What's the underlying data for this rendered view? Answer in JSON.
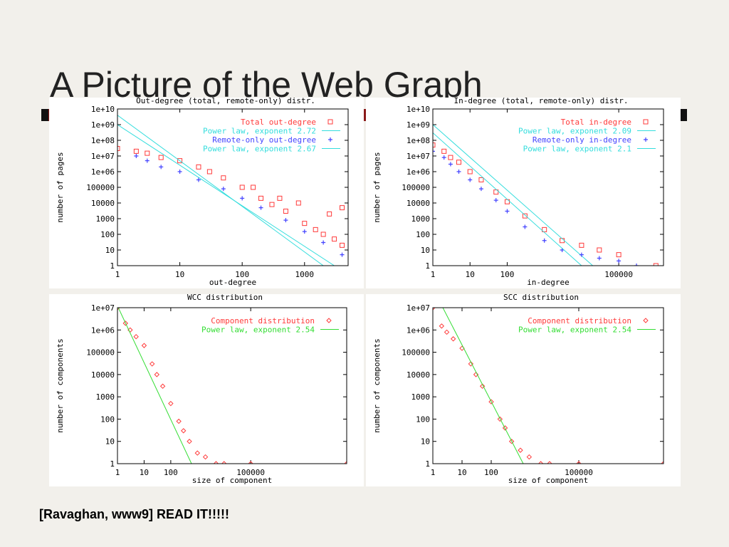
{
  "title": "A Picture of the Web Graph",
  "footnote": "[Ravaghan, www9] READ IT!!!!!",
  "chart_data": [
    {
      "type": "scatter",
      "title": "Out-degree (total, remote-only) distr.",
      "x_label": "out-degree",
      "y_label": "number of pages",
      "log_x": true,
      "log_y": true,
      "grid": false,
      "legend": "top-right",
      "xlim": [
        1,
        5000
      ],
      "ylim": [
        1,
        10000000000
      ],
      "xticks": [
        1,
        10,
        100,
        1000
      ],
      "yticks": [
        1,
        10,
        100,
        1000,
        10000,
        100000,
        {
          "value": 1000000,
          "label": "1e+06"
        },
        {
          "value": 10000000,
          "label": "1e+07"
        },
        {
          "value": 100000000,
          "label": "1e+08"
        },
        {
          "value": 1000000000,
          "label": "1e+09"
        },
        {
          "value": 10000000000,
          "label": "1e+10"
        }
      ],
      "series": [
        {
          "name": "Total out-degree",
          "color": "#ff3b3b",
          "marker": "square",
          "x": [
            1,
            2,
            3,
            5,
            10,
            20,
            30,
            50,
            100,
            150,
            200,
            300,
            400,
            500,
            800,
            1000,
            1500,
            2000,
            2500,
            3000,
            4000,
            4000
          ],
          "values": [
            30000000,
            20000000,
            15000000,
            8000000,
            5000000,
            2000000,
            1000000,
            400000,
            100000,
            100000,
            20000,
            8000,
            20000,
            3000,
            10000,
            500,
            200,
            100,
            2000,
            50,
            20,
            5000
          ]
        },
        {
          "name": "Power law, exponent 2.72",
          "color": "#33dddd",
          "marker": "line",
          "x": [
            1,
            2000
          ],
          "values": [
            4000000000,
            1
          ]
        },
        {
          "name": "Remote-only out-degree",
          "color": "#4444ff",
          "marker": "plus",
          "x": [
            2,
            3,
            5,
            10,
            20,
            50,
            100,
            200,
            500,
            1000,
            2000,
            4000
          ],
          "values": [
            10000000,
            5000000,
            2000000,
            1000000,
            300000,
            80000,
            20000,
            5000,
            800,
            150,
            30,
            5
          ]
        },
        {
          "name": "Power law, exponent 2.67",
          "color": "#33dddd",
          "marker": "line",
          "x": [
            1,
            3000
          ],
          "values": [
            1000000000,
            1
          ]
        }
      ]
    },
    {
      "type": "scatter",
      "title": "In-degree (total, remote-only) distr.",
      "x_label": "in-degree",
      "y_label": "number of pages",
      "log_x": true,
      "log_y": true,
      "grid": false,
      "legend": "top-right",
      "xlim": [
        1,
        1600000
      ],
      "ylim": [
        1,
        10000000000
      ],
      "xticks": [
        1,
        10,
        100,
        100000
      ],
      "yticks": [
        1,
        10,
        100,
        1000,
        10000,
        100000,
        {
          "value": 1000000,
          "label": "1e+06"
        },
        {
          "value": 10000000,
          "label": "1e+07"
        },
        {
          "value": 100000000,
          "label": "1e+08"
        },
        {
          "value": 1000000000,
          "label": "1e+09"
        },
        {
          "value": 10000000000,
          "label": "1e+10"
        }
      ],
      "series": [
        {
          "name": "Total in-degree",
          "color": "#ff3b3b",
          "marker": "square",
          "x": [
            1,
            2,
            3,
            5,
            10,
            20,
            50,
            100,
            300,
            1000,
            3000,
            10000,
            30000,
            100000,
            1000000
          ],
          "values": [
            50000000,
            20000000,
            8000000,
            4000000,
            1000000,
            300000,
            50000,
            12000,
            1500,
            200,
            40,
            20,
            10,
            5,
            1
          ]
        },
        {
          "name": "Power law, exponent 2.09",
          "color": "#33dddd",
          "marker": "line",
          "x": [
            1,
            20000
          ],
          "values": [
            1000000000,
            1
          ]
        },
        {
          "name": "Remote-only in-degree",
          "color": "#4444ff",
          "marker": "plus",
          "x": [
            1,
            2,
            3,
            5,
            10,
            20,
            50,
            100,
            300,
            1000,
            3000,
            10000,
            30000,
            100000,
            300000
          ],
          "values": [
            20000000,
            8000000,
            3000000,
            1000000,
            300000,
            80000,
            15000,
            3000,
            300,
            40,
            10,
            5,
            3,
            2,
            1
          ]
        },
        {
          "name": "Power law, exponent 2.1",
          "color": "#33dddd",
          "marker": "line",
          "x": [
            1,
            10000
          ],
          "values": [
            300000000,
            1
          ]
        }
      ]
    },
    {
      "type": "scatter",
      "title": "WCC distribution",
      "x_label": "size of component",
      "y_label": "number of components",
      "log_x": true,
      "log_y": true,
      "grid": false,
      "legend": "top-right",
      "xlim": [
        1,
        400000000
      ],
      "ylim": [
        1,
        10000000
      ],
      "xticks": [
        1,
        10,
        100,
        100000
      ],
      "yticks": [
        1,
        10,
        100,
        1000,
        10000,
        100000,
        {
          "value": 1000000,
          "label": "1e+06"
        },
        {
          "value": 10000000,
          "label": "1e+07"
        }
      ],
      "series": [
        {
          "name": "Component distribution",
          "color": "#ff3b3b",
          "marker": "diamond",
          "x": [
            1,
            2,
            3,
            5,
            10,
            20,
            30,
            50,
            100,
            200,
            300,
            500,
            1000,
            2000,
            5000,
            10000,
            100000,
            400000000
          ],
          "values": [
            10000000,
            2000000,
            1000000,
            500000,
            200000,
            30000,
            10000,
            3000,
            500,
            80,
            30,
            10,
            3,
            2,
            1,
            1,
            1,
            1
          ]
        },
        {
          "name": "Power law, exponent 2.54",
          "color": "#33dd33",
          "marker": "line",
          "x": [
            1,
            600
          ],
          "values": [
            12000000,
            1
          ]
        }
      ]
    },
    {
      "type": "scatter",
      "title": "SCC distribution",
      "x_label": "size of component",
      "y_label": "number of components",
      "log_x": true,
      "log_y": true,
      "grid": false,
      "legend": "top-right",
      "xlim": [
        1,
        80000000
      ],
      "ylim": [
        1,
        10000000
      ],
      "xticks": [
        1,
        10,
        100,
        100000
      ],
      "yticks": [
        1,
        10,
        100,
        1000,
        10000,
        100000,
        {
          "value": 1000000,
          "label": "1e+06"
        },
        {
          "value": 10000000,
          "label": "1e+07"
        }
      ],
      "series": [
        {
          "name": "Component distribution",
          "color": "#ff3b3b",
          "marker": "diamond",
          "x": [
            1,
            2,
            3,
            5,
            10,
            20,
            30,
            50,
            100,
            200,
            300,
            500,
            1000,
            2000,
            5000,
            10000,
            100000,
            80000000
          ],
          "values": [
            10000000,
            1500000,
            800000,
            400000,
            150000,
            30000,
            10000,
            3000,
            600,
            100,
            40,
            10,
            4,
            2,
            1,
            1,
            1,
            1
          ]
        },
        {
          "name": "Power law, exponent 2.54",
          "color": "#33dd33",
          "marker": "line",
          "x": [
            2.2,
            1250
          ],
          "values": [
            10000000,
            1
          ]
        }
      ]
    }
  ]
}
